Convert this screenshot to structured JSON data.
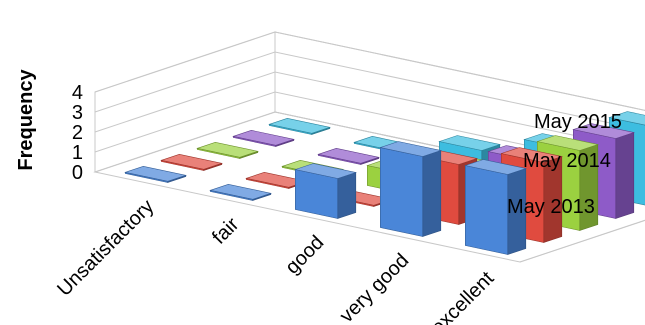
{
  "chart_data": {
    "type": "bar3d",
    "title": "",
    "ylabel": "Frequency",
    "ylim": [
      0,
      4
    ],
    "yticks": [
      "0",
      "1",
      "2",
      "3",
      "4"
    ],
    "categories": [
      "Unsatisfactory",
      "fair",
      "good",
      "very good",
      "excellent"
    ],
    "series": [
      {
        "name": "May 2013",
        "color": "#4A86D8",
        "values": [
          0,
          0,
          2,
          4,
          4
        ]
      },
      {
        "name": "May 2014",
        "color": "#E04B3F",
        "values": [
          0,
          0,
          0,
          3,
          4
        ]
      },
      {
        "name": "May 2015",
        "color": "#9BD140",
        "values": [
          0,
          0,
          1,
          2,
          4
        ]
      },
      {
        "name": "",
        "color": "#8E5BC8",
        "values": [
          0,
          0,
          0,
          2,
          4
        ]
      },
      {
        "name": "",
        "color": "#3DBDE0",
        "values": [
          0,
          0,
          1,
          2,
          4
        ]
      }
    ],
    "grid": true,
    "legend": "none"
  }
}
